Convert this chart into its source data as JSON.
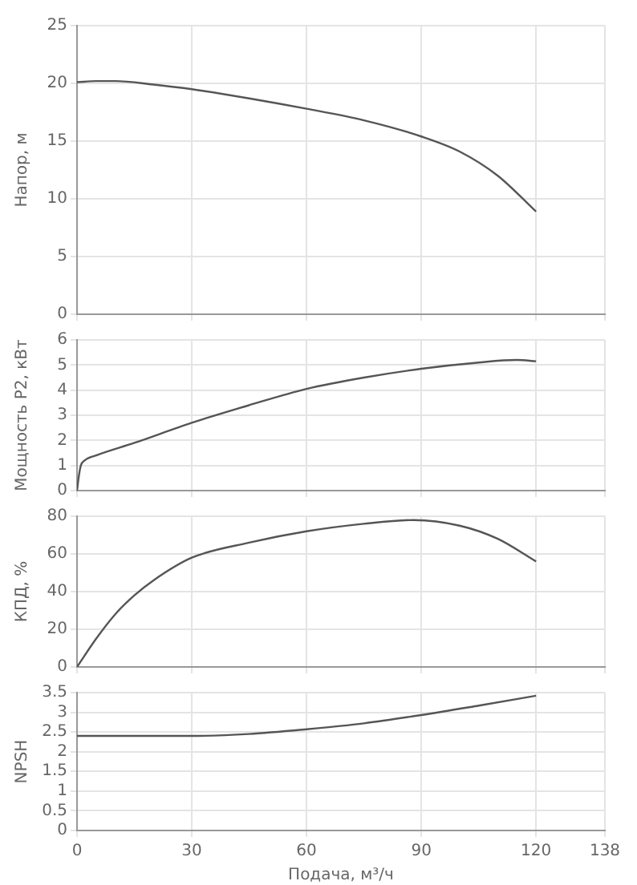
{
  "chart_data": [
    {
      "type": "line",
      "ylabel": "Напор, м",
      "xlim": [
        0,
        138
      ],
      "xticks": [
        0,
        30,
        60,
        90,
        120,
        138
      ],
      "ylim": [
        0,
        25
      ],
      "yticks": [
        0,
        5,
        10,
        15,
        20,
        25
      ],
      "grid": true,
      "legend": false,
      "tick_labels": "y",
      "marker": "none",
      "series": [
        {
          "color": "#555555",
          "x": [
            0,
            5,
            10,
            20,
            30,
            45,
            60,
            75,
            90,
            100,
            110,
            120
          ],
          "values": [
            20.1,
            20.2,
            20.2,
            19.9,
            19.5,
            18.7,
            17.8,
            16.8,
            15.4,
            14.1,
            12.0,
            8.9
          ]
        }
      ]
    },
    {
      "type": "line",
      "ylabel": "Мощность P2, кВт",
      "xlim": [
        0,
        138
      ],
      "xticks": [
        0,
        30,
        60,
        90,
        120,
        138
      ],
      "ylim": [
        0,
        6
      ],
      "yticks": [
        0,
        1,
        2,
        3,
        4,
        5,
        6
      ],
      "grid": true,
      "legend": false,
      "tick_labels": "y",
      "marker": "none",
      "series": [
        {
          "color": "#555555",
          "x": [
            0,
            0.5,
            1,
            2,
            5,
            15,
            30,
            45,
            60,
            75,
            90,
            105,
            115,
            120
          ],
          "values": [
            0,
            0.6,
            1.0,
            1.2,
            1.4,
            1.9,
            2.7,
            3.4,
            4.05,
            4.5,
            4.85,
            5.1,
            5.2,
            5.15
          ]
        }
      ]
    },
    {
      "type": "line",
      "ylabel": "КПД, %",
      "xlim": [
        0,
        138
      ],
      "xticks": [
        0,
        30,
        60,
        90,
        120,
        138
      ],
      "ylim": [
        0,
        80
      ],
      "yticks": [
        0,
        20,
        40,
        60,
        80
      ],
      "grid": true,
      "legend": false,
      "tick_labels": "y",
      "marker": "none",
      "series": [
        {
          "color": "#555555",
          "x": [
            0,
            5,
            10,
            15,
            20,
            30,
            45,
            60,
            75,
            88,
            100,
            110,
            120
          ],
          "values": [
            0,
            15,
            28,
            38,
            46,
            58,
            66,
            72,
            76,
            78,
            75,
            68,
            56
          ]
        }
      ]
    },
    {
      "type": "line",
      "ylabel": "NPSH",
      "xlabel": "Подача, м³/ч",
      "xlim": [
        0,
        138
      ],
      "xticks": [
        0,
        30,
        60,
        90,
        120,
        138
      ],
      "ylim": [
        0,
        3.5
      ],
      "yticks": [
        0,
        0.5,
        1,
        1.5,
        2,
        2.5,
        3,
        3.5
      ],
      "grid": true,
      "legend": false,
      "marker": "none",
      "series": [
        {
          "color": "#555555",
          "x": [
            0,
            30,
            45,
            60,
            75,
            90,
            105,
            120
          ],
          "values": [
            2.4,
            2.4,
            2.45,
            2.57,
            2.72,
            2.93,
            3.17,
            3.42
          ]
        }
      ]
    }
  ]
}
